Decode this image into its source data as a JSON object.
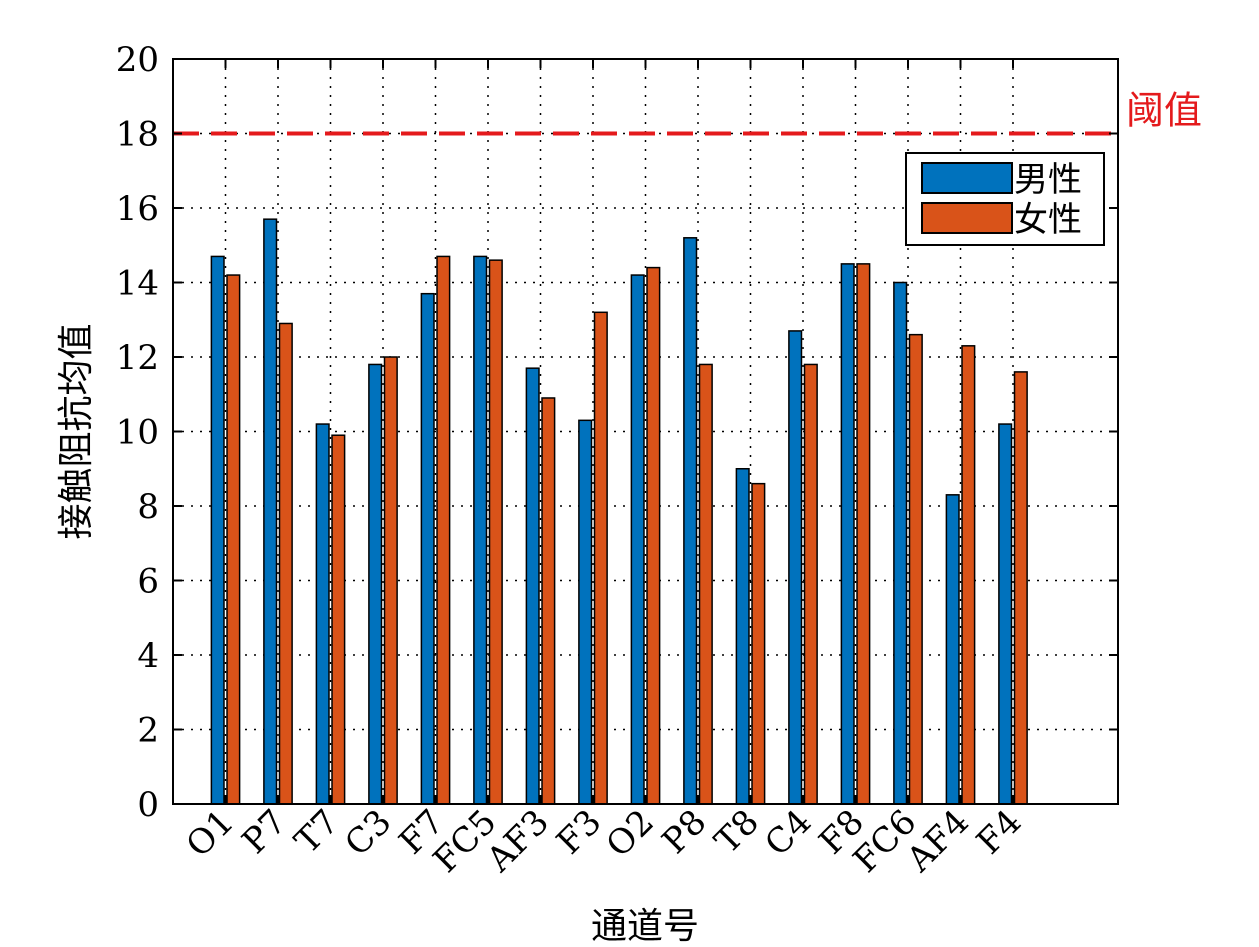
{
  "chart_data": {
    "type": "bar",
    "xlabel": "通道号",
    "ylabel": "接触阻抗均值",
    "ylim": [
      0,
      20
    ],
    "yticks": [
      0,
      2,
      4,
      6,
      8,
      10,
      12,
      14,
      16,
      18,
      20
    ],
    "categories": [
      "O1",
      "P7",
      "T7",
      "C3",
      "F7",
      "FC5",
      "AF3",
      "F3",
      "O2",
      "P8",
      "T8",
      "C4",
      "F8",
      "FC6",
      "AF4",
      "F4"
    ],
    "series": [
      {
        "name": "男性",
        "color": "#0072BD",
        "values": [
          14.7,
          15.7,
          10.2,
          11.8,
          13.7,
          14.7,
          11.7,
          10.3,
          14.2,
          15.2,
          9.0,
          12.7,
          14.5,
          14.0,
          8.3,
          10.2
        ]
      },
      {
        "name": "女性",
        "color": "#D95319",
        "values": [
          14.2,
          12.9,
          9.9,
          12.0,
          14.7,
          14.6,
          10.9,
          13.2,
          14.4,
          11.8,
          8.6,
          11.8,
          14.5,
          12.6,
          12.3,
          11.6
        ]
      }
    ],
    "threshold": {
      "value": 18,
      "label": "阈值",
      "color": "#E41A1C",
      "style": "dashed"
    },
    "grid": true,
    "grid_style": "dotted",
    "legend_position": "top-right"
  }
}
